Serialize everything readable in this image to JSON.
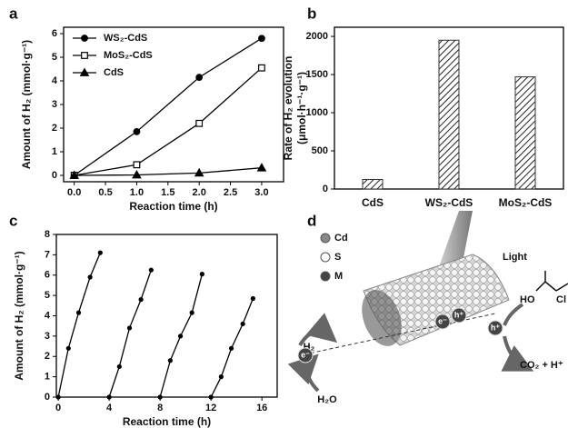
{
  "chart_data": [
    {
      "panel": "a",
      "type": "line",
      "xlabel": "Reaction time (h)",
      "ylabel": "Amount of H₂ (mmol·g⁻¹)",
      "x": [
        0,
        1,
        2,
        3
      ],
      "xlim": [
        -0.17,
        3.35
      ],
      "ylim": [
        -0.27,
        6.27
      ],
      "xticks": [
        {
          "value": 0,
          "label": "0.0"
        },
        {
          "value": 0.5,
          "label": "0.5"
        },
        {
          "value": 1,
          "label": "1.0"
        },
        {
          "value": 1.5,
          "label": "1.5"
        },
        {
          "value": 2,
          "label": "2.0"
        },
        {
          "value": 2.5,
          "label": "2.5"
        },
        {
          "value": 3,
          "label": "3.0"
        }
      ],
      "yticks": [
        0,
        1,
        2,
        3,
        4,
        5,
        6
      ],
      "legend": "upper left",
      "series": [
        {
          "name": "WS₂-CdS",
          "color": "#000000",
          "marker": "circle",
          "marker_fill": "#000000",
          "values": [
            0,
            1.85,
            4.15,
            5.8
          ]
        },
        {
          "name": "MoS₂-CdS",
          "color": "#000000",
          "marker": "square",
          "marker_fill": "#ffffff",
          "values": [
            0,
            0.45,
            2.2,
            4.55
          ]
        },
        {
          "name": "CdS",
          "color": "#000000",
          "marker": "triangle",
          "marker_fill": "#000000",
          "values": [
            0,
            0.02,
            0.1,
            0.32
          ]
        }
      ]
    },
    {
      "panel": "b",
      "type": "bar",
      "ylabel": [
        "Rate of H₂ evolution",
        "(μmol·h⁻¹·g⁻¹)"
      ],
      "categories": [
        "CdS",
        "WS₂-CdS",
        "MoS₂-CdS"
      ],
      "values": [
        125,
        1950,
        1470
      ],
      "color": "#333333",
      "hatch": true,
      "ylim": [
        0,
        2120
      ],
      "yticks": [
        0,
        500,
        1000,
        1500,
        2000
      ]
    },
    {
      "panel": "c",
      "type": "line",
      "xlabel": "Reaction time (h)",
      "ylabel": "Amount of H₂ (mmol·g⁻¹)",
      "x": [
        0,
        0.8,
        1.6,
        2.5,
        3.3,
        null,
        4,
        4.8,
        5.6,
        6.5,
        7.3,
        null,
        8,
        8.8,
        9.6,
        10.5,
        11.3,
        null,
        12,
        12.8,
        13.6,
        14.5,
        15.3
      ],
      "xlim": [
        -0.15,
        17.2
      ],
      "ylim": [
        0,
        8
      ],
      "xticks": [
        0,
        4,
        8,
        12,
        16
      ],
      "yticks": [
        0,
        1,
        2,
        3,
        4,
        5,
        6,
        7,
        8
      ],
      "series": [
        {
          "color": "#000000",
          "marker": "circle",
          "marker_fill": "#000000",
          "values": [
            0,
            2.4,
            4.15,
            5.9,
            7.1,
            null,
            0,
            1.5,
            3.4,
            4.8,
            6.25,
            null,
            0,
            1.8,
            3.0,
            4.15,
            6.05,
            null,
            0,
            1.0,
            2.4,
            3.6,
            4.85
          ]
        }
      ]
    }
  ],
  "diagram": {
    "panel": "d",
    "legend": [
      "Cd",
      "S",
      "M"
    ],
    "light": "Light",
    "h2": "H₂",
    "h2o": "H₂O",
    "products": "CO₂ + H⁺",
    "charges": [
      "e⁻",
      "e⁻",
      "h⁺",
      "h⁺"
    ],
    "molecule": [
      "HO",
      "Cl"
    ]
  }
}
